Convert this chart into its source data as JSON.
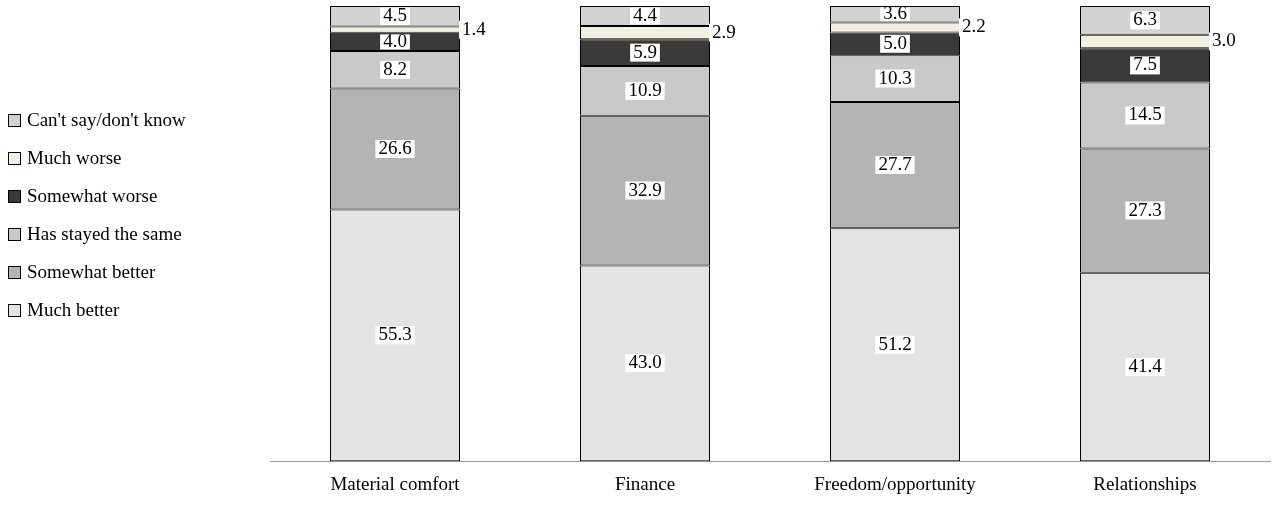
{
  "chart_data": {
    "type": "bar",
    "stacked": true,
    "legend": "left",
    "grid": false,
    "categories": [
      "Material comfort",
      "Finance",
      "Freedom/opportunity",
      "Relationships"
    ],
    "series": [
      {
        "name": "Much better",
        "color": "#e3e3e3",
        "values": [
          55.3,
          43.0,
          51.2,
          41.4
        ],
        "value_labels": [
          "55.3",
          "43.0",
          "51.2",
          "41.4"
        ]
      },
      {
        "name": "Somewhat better",
        "color": "#b4b4b4",
        "values": [
          26.6,
          32.9,
          27.7,
          27.3
        ],
        "value_labels": [
          "26.6",
          "32.9",
          "27.7",
          "27.3"
        ]
      },
      {
        "name": "Has stayed the same",
        "color": "#c9c9c9",
        "values": [
          8.2,
          10.9,
          10.3,
          14.5
        ],
        "value_labels": [
          "8.2",
          "10.9",
          "10.3",
          "14.5"
        ]
      },
      {
        "name": "Somewhat worse",
        "color": "#3a3a3a",
        "values": [
          4.0,
          5.9,
          5.0,
          7.5
        ],
        "value_labels": [
          "4.0",
          "5.9",
          "5.0",
          "7.5"
        ]
      },
      {
        "name": "Much worse",
        "color": "#f3f0df",
        "values": [
          1.4,
          2.9,
          2.2,
          3.0
        ],
        "value_labels": [
          "1.4",
          "2.9",
          "2.2",
          "3.0"
        ]
      },
      {
        "name": "Can't say/don't know",
        "color": "#d2d2d2",
        "values": [
          4.5,
          4.4,
          3.6,
          6.3
        ],
        "value_labels": [
          "4.5",
          "4.4",
          "3.6",
          "6.3"
        ]
      }
    ]
  }
}
